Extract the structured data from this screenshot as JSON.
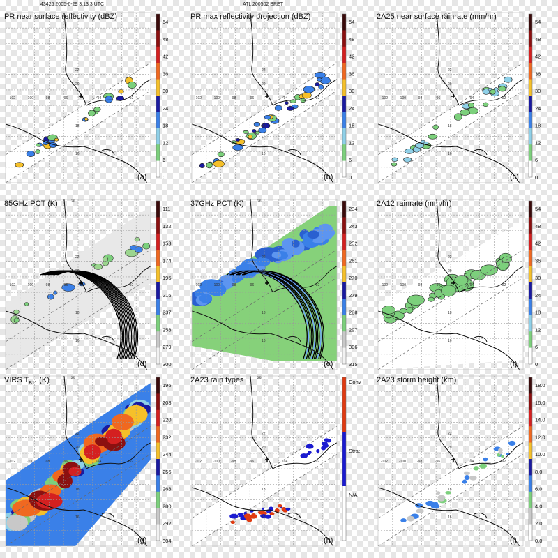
{
  "header": {
    "left": "43426 2005-6-29 3:13:3 UTC",
    "center": "ATL 200502 BRET"
  },
  "chart_data": [
    {
      "type": "heatmap",
      "title": "PR near surface reflectivity (dBZ)",
      "panel_label": "(a)",
      "colorbar": {
        "ticks": [
          "54",
          "48",
          "42",
          "36",
          "30",
          "24",
          "18",
          "12",
          "6",
          "0"
        ],
        "colors": [
          "#3a0b0b",
          "#8b1010",
          "#d42020",
          "#f06820",
          "#f5c02a",
          "#1a1aa0",
          "#3a80e8",
          "#8fd0e8",
          "#7cd07c",
          "#ffffff"
        ]
      }
    },
    {
      "type": "heatmap",
      "title": "PR max reflectivity projection (dBZ)",
      "panel_label": "(b)",
      "colorbar": {
        "ticks": [
          "54",
          "48",
          "42",
          "36",
          "30",
          "24",
          "18",
          "12",
          "6",
          "0"
        ],
        "colors": [
          "#3a0b0b",
          "#8b1010",
          "#d42020",
          "#f06820",
          "#f5c02a",
          "#1a1aa0",
          "#3a80e8",
          "#8fd0e8",
          "#7cd07c",
          "#ffffff"
        ]
      }
    },
    {
      "type": "heatmap",
      "title": "2A25 near surface rainrate (mm/hr)",
      "panel_label": "(c)",
      "colorbar": {
        "ticks": [
          "54",
          "48",
          "42",
          "36",
          "30",
          "24",
          "18",
          "12",
          "6",
          "0"
        ],
        "colors": [
          "#3a0b0b",
          "#8b1010",
          "#d42020",
          "#f06820",
          "#f5c02a",
          "#1a1aa0",
          "#3a80e8",
          "#8fd0e8",
          "#7cd07c",
          "#ffffff"
        ]
      }
    },
    {
      "type": "heatmap",
      "title": "85GHz PCT (K)",
      "panel_label": "(d)",
      "colorbar": {
        "ticks": [
          "111",
          "132",
          "153",
          "174",
          "195",
          "216",
          "237",
          "258",
          "279",
          "300"
        ],
        "colors": [
          "#3a0b0b",
          "#8b1010",
          "#d42020",
          "#f06820",
          "#f5c02a",
          "#1a1aa0",
          "#3a80e8",
          "#7cd07c",
          "#c8c8c8",
          "#f2f2f2"
        ]
      }
    },
    {
      "type": "heatmap",
      "title": "37GHz PCT (K)",
      "panel_label": "(e)",
      "colorbar": {
        "ticks": [
          "234",
          "243",
          "252",
          "261",
          "270",
          "279",
          "288",
          "297",
          "306",
          "315"
        ],
        "colors": [
          "#3a0b0b",
          "#8b1010",
          "#d42020",
          "#f06820",
          "#f5c02a",
          "#1a1aa0",
          "#3a80e8",
          "#7cd07c",
          "#c8c8c8",
          "#f2f2f2"
        ]
      }
    },
    {
      "type": "heatmap",
      "title": "2A12 rainrate (mm/hr)",
      "panel_label": "(f)",
      "colorbar": {
        "ticks": [
          "54",
          "48",
          "42",
          "36",
          "30",
          "24",
          "18",
          "12",
          "6",
          "0"
        ],
        "colors": [
          "#3a0b0b",
          "#8b1010",
          "#d42020",
          "#f06820",
          "#f5c02a",
          "#1a1aa0",
          "#3a80e8",
          "#8fd0e8",
          "#7cd07c",
          "#ffffff"
        ]
      }
    },
    {
      "type": "heatmap",
      "title": "VIRS T",
      "title_sub": "B11",
      "title_suffix": " (K)",
      "panel_label": "(g)",
      "colorbar": {
        "ticks": [
          "196",
          "208",
          "220",
          "232",
          "244",
          "256",
          "268",
          "280",
          "292",
          "304"
        ],
        "colors": [
          "#3a0b0b",
          "#8b1010",
          "#d42020",
          "#f06820",
          "#f5c02a",
          "#1a1aa0",
          "#3a80e8",
          "#7cd07c",
          "#c8c8c8",
          "#f2f2f2"
        ]
      }
    },
    {
      "type": "heatmap",
      "title": "2A23 rain types",
      "panel_label": "(h)",
      "colorbar": {
        "ticks": [
          "Conv",
          "Strat",
          "N/A"
        ],
        "colors": [
          "#e03a10",
          "#1a1ad0",
          "#ffffff"
        ]
      }
    },
    {
      "type": "heatmap",
      "title": "2A23 storm height (km)",
      "panel_label": "(i)",
      "colorbar": {
        "ticks": [
          "18.0",
          "16.0",
          "14.0",
          "12.0",
          "10.0",
          "8.0",
          "6.0",
          "4.0",
          "2.0",
          "0.0"
        ],
        "colors": [
          "#3a0b0b",
          "#8b1010",
          "#d42020",
          "#f06820",
          "#f5c02a",
          "#1a1aa0",
          "#3a80e8",
          "#7cd07c",
          "#c8c8c8",
          "#ffffff"
        ]
      }
    }
  ],
  "map": {
    "lon_labels": [
      "-102",
      "-100",
      "-98",
      "-96",
      "-94",
      "-92"
    ],
    "lat_labels": [
      "26",
      "22",
      "20",
      "18",
      "16"
    ]
  }
}
